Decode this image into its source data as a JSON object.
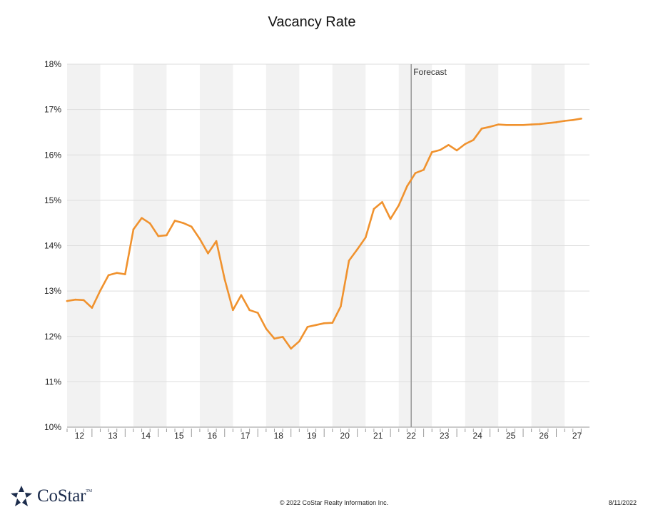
{
  "chart_data": {
    "type": "line",
    "title": "Vacancy Rate",
    "y_ticks": [
      "10%",
      "11%",
      "12%",
      "13%",
      "14%",
      "15%",
      "16%",
      "17%",
      "18%"
    ],
    "ylim": [
      10,
      18
    ],
    "x_ticks": [
      "12",
      "13",
      "14",
      "15",
      "16",
      "17",
      "18",
      "19",
      "20",
      "21",
      "22",
      "23",
      "24",
      "25",
      "26",
      "27"
    ],
    "forecast_label": "Forecast",
    "forecast_at": "22",
    "series": [
      {
        "color": "#f0922e",
        "values": [
          12.78,
          12.81,
          12.8,
          12.63,
          13.01,
          13.35,
          13.4,
          13.37,
          14.36,
          14.61,
          14.49,
          14.21,
          14.23,
          14.55,
          14.5,
          14.42,
          14.15,
          13.83,
          14.1,
          13.26,
          12.58,
          12.91,
          12.58,
          12.52,
          12.17,
          11.95,
          11.99,
          11.73,
          11.89,
          12.21,
          12.25,
          12.29,
          12.3,
          12.66,
          13.67,
          13.92,
          14.18,
          14.81,
          14.96,
          14.59,
          14.89,
          15.31,
          15.6,
          15.67,
          16.06,
          16.11,
          16.22,
          16.1,
          16.24,
          16.33,
          16.58,
          16.62,
          16.67,
          16.66,
          16.66,
          16.66,
          16.67,
          16.68,
          16.7,
          16.72,
          16.75,
          16.77,
          16.8
        ]
      }
    ],
    "grid": true,
    "shaded_bands": true
  },
  "footer": {
    "logo": "CoStar",
    "logo_tm": "TM",
    "copyright": "© 2022 CoStar Realty Information Inc.",
    "date": "8/11/2022"
  }
}
